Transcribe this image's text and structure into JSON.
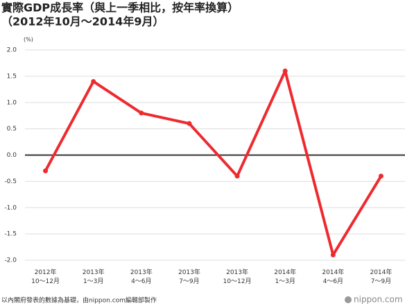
{
  "chart_data": {
    "type": "line",
    "title": "實際GDP成長率（與上一季相比，按年率換算）",
    "subtitle": "（2012年10月～2014年9月）",
    "y_unit": "(%)",
    "categories": [
      "2012年\n10～12月",
      "2013年\n1～3月",
      "2013年\n4～6月",
      "2013年\n7～9月",
      "2013年\n10～12月",
      "2014年\n1～3月",
      "2014年\n4～6月",
      "2014年\n7～9月"
    ],
    "values": [
      -0.3,
      1.4,
      0.8,
      0.6,
      -0.4,
      1.6,
      -1.9,
      -0.4
    ],
    "color": "#ee2a2f",
    "ylim": [
      -2,
      2
    ],
    "yticks": [
      {
        "value": -2,
        "label": "-2.0"
      },
      {
        "value": -1.5,
        "label": "-1.5"
      },
      {
        "value": -1,
        "label": "-1.0"
      },
      {
        "value": -0.5,
        "label": "-0.5"
      },
      {
        "value": 0,
        "label": "0.0"
      },
      {
        "value": 0.5,
        "label": "0.5"
      },
      {
        "value": 1,
        "label": "1.0"
      },
      {
        "value": 1.5,
        "label": "1.5"
      },
      {
        "value": 2,
        "label": "2.0"
      }
    ],
    "grid": true,
    "source": "以內閣府發表的數據為基礎，由nippon.com編輯部製作",
    "logo": "nippon.com"
  }
}
